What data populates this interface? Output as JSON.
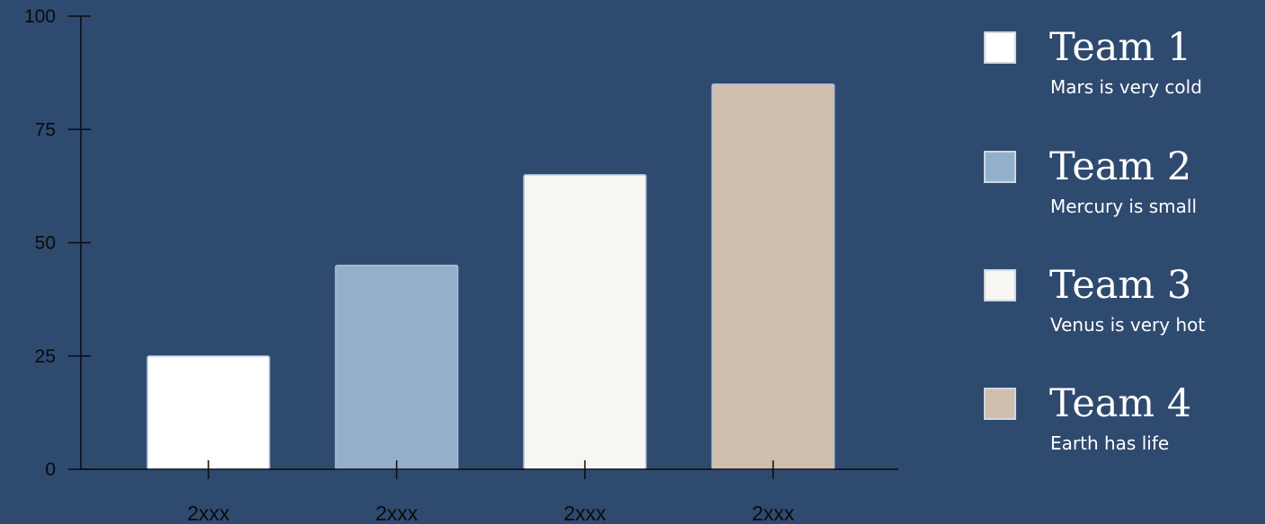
{
  "chart_data": {
    "type": "bar",
    "categories": [
      "2xxx",
      "2xxx",
      "2xxx",
      "2xxx"
    ],
    "values": [
      25,
      45,
      65,
      85
    ],
    "ylim": [
      0,
      100
    ],
    "yticks": [
      "0",
      "25",
      "50",
      "75",
      "100"
    ],
    "bar_colors": [
      "#ffffff",
      "#94afcb",
      "#f8f6f3",
      "#d0bfad"
    ],
    "grid": false,
    "legend_position": "right"
  },
  "legend": {
    "items": [
      {
        "name": "Team 1",
        "desc": "Mars is very cold",
        "color": "#ffffff"
      },
      {
        "name": "Team 2",
        "desc": "Mercury is small",
        "color": "#94afcb"
      },
      {
        "name": "Team 3",
        "desc": "Venus is very hot",
        "color": "#f8f6f3"
      },
      {
        "name": "Team 4",
        "desc": "Earth has life",
        "color": "#d0bfad"
      }
    ]
  },
  "colors": {
    "background": "#2f4a6f",
    "axis": "#0a0a0a"
  }
}
